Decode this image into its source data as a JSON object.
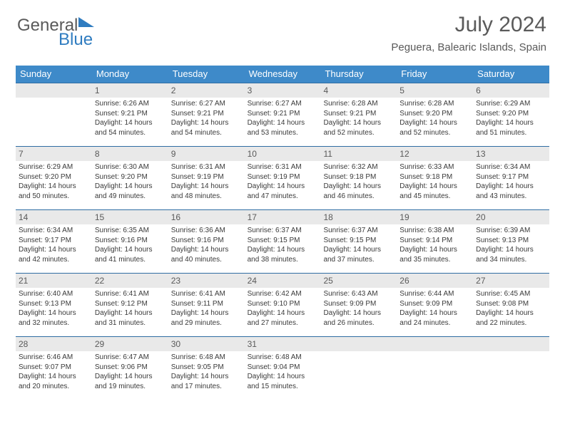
{
  "logo": {
    "part1": "General",
    "part2": "Blue"
  },
  "header": {
    "title": "July 2024",
    "location": "Peguera, Balearic Islands, Spain"
  },
  "colors": {
    "header_bg": "#3e8ac9",
    "header_text": "#ffffff",
    "week_border": "#2f6da3",
    "daynum_bg": "#e9e9e9",
    "text": "#3a3a3a",
    "logo_blue": "#2f7cc0",
    "logo_gray": "#5a5a5a"
  },
  "day_names": [
    "Sunday",
    "Monday",
    "Tuesday",
    "Wednesday",
    "Thursday",
    "Friday",
    "Saturday"
  ],
  "weeks": [
    [
      {
        "num": "",
        "lines": []
      },
      {
        "num": "1",
        "lines": [
          "Sunrise: 6:26 AM",
          "Sunset: 9:21 PM",
          "Daylight: 14 hours",
          "and 54 minutes."
        ]
      },
      {
        "num": "2",
        "lines": [
          "Sunrise: 6:27 AM",
          "Sunset: 9:21 PM",
          "Daylight: 14 hours",
          "and 54 minutes."
        ]
      },
      {
        "num": "3",
        "lines": [
          "Sunrise: 6:27 AM",
          "Sunset: 9:21 PM",
          "Daylight: 14 hours",
          "and 53 minutes."
        ]
      },
      {
        "num": "4",
        "lines": [
          "Sunrise: 6:28 AM",
          "Sunset: 9:21 PM",
          "Daylight: 14 hours",
          "and 52 minutes."
        ]
      },
      {
        "num": "5",
        "lines": [
          "Sunrise: 6:28 AM",
          "Sunset: 9:20 PM",
          "Daylight: 14 hours",
          "and 52 minutes."
        ]
      },
      {
        "num": "6",
        "lines": [
          "Sunrise: 6:29 AM",
          "Sunset: 9:20 PM",
          "Daylight: 14 hours",
          "and 51 minutes."
        ]
      }
    ],
    [
      {
        "num": "7",
        "lines": [
          "Sunrise: 6:29 AM",
          "Sunset: 9:20 PM",
          "Daylight: 14 hours",
          "and 50 minutes."
        ]
      },
      {
        "num": "8",
        "lines": [
          "Sunrise: 6:30 AM",
          "Sunset: 9:20 PM",
          "Daylight: 14 hours",
          "and 49 minutes."
        ]
      },
      {
        "num": "9",
        "lines": [
          "Sunrise: 6:31 AM",
          "Sunset: 9:19 PM",
          "Daylight: 14 hours",
          "and 48 minutes."
        ]
      },
      {
        "num": "10",
        "lines": [
          "Sunrise: 6:31 AM",
          "Sunset: 9:19 PM",
          "Daylight: 14 hours",
          "and 47 minutes."
        ]
      },
      {
        "num": "11",
        "lines": [
          "Sunrise: 6:32 AM",
          "Sunset: 9:18 PM",
          "Daylight: 14 hours",
          "and 46 minutes."
        ]
      },
      {
        "num": "12",
        "lines": [
          "Sunrise: 6:33 AM",
          "Sunset: 9:18 PM",
          "Daylight: 14 hours",
          "and 45 minutes."
        ]
      },
      {
        "num": "13",
        "lines": [
          "Sunrise: 6:34 AM",
          "Sunset: 9:17 PM",
          "Daylight: 14 hours",
          "and 43 minutes."
        ]
      }
    ],
    [
      {
        "num": "14",
        "lines": [
          "Sunrise: 6:34 AM",
          "Sunset: 9:17 PM",
          "Daylight: 14 hours",
          "and 42 minutes."
        ]
      },
      {
        "num": "15",
        "lines": [
          "Sunrise: 6:35 AM",
          "Sunset: 9:16 PM",
          "Daylight: 14 hours",
          "and 41 minutes."
        ]
      },
      {
        "num": "16",
        "lines": [
          "Sunrise: 6:36 AM",
          "Sunset: 9:16 PM",
          "Daylight: 14 hours",
          "and 40 minutes."
        ]
      },
      {
        "num": "17",
        "lines": [
          "Sunrise: 6:37 AM",
          "Sunset: 9:15 PM",
          "Daylight: 14 hours",
          "and 38 minutes."
        ]
      },
      {
        "num": "18",
        "lines": [
          "Sunrise: 6:37 AM",
          "Sunset: 9:15 PM",
          "Daylight: 14 hours",
          "and 37 minutes."
        ]
      },
      {
        "num": "19",
        "lines": [
          "Sunrise: 6:38 AM",
          "Sunset: 9:14 PM",
          "Daylight: 14 hours",
          "and 35 minutes."
        ]
      },
      {
        "num": "20",
        "lines": [
          "Sunrise: 6:39 AM",
          "Sunset: 9:13 PM",
          "Daylight: 14 hours",
          "and 34 minutes."
        ]
      }
    ],
    [
      {
        "num": "21",
        "lines": [
          "Sunrise: 6:40 AM",
          "Sunset: 9:13 PM",
          "Daylight: 14 hours",
          "and 32 minutes."
        ]
      },
      {
        "num": "22",
        "lines": [
          "Sunrise: 6:41 AM",
          "Sunset: 9:12 PM",
          "Daylight: 14 hours",
          "and 31 minutes."
        ]
      },
      {
        "num": "23",
        "lines": [
          "Sunrise: 6:41 AM",
          "Sunset: 9:11 PM",
          "Daylight: 14 hours",
          "and 29 minutes."
        ]
      },
      {
        "num": "24",
        "lines": [
          "Sunrise: 6:42 AM",
          "Sunset: 9:10 PM",
          "Daylight: 14 hours",
          "and 27 minutes."
        ]
      },
      {
        "num": "25",
        "lines": [
          "Sunrise: 6:43 AM",
          "Sunset: 9:09 PM",
          "Daylight: 14 hours",
          "and 26 minutes."
        ]
      },
      {
        "num": "26",
        "lines": [
          "Sunrise: 6:44 AM",
          "Sunset: 9:09 PM",
          "Daylight: 14 hours",
          "and 24 minutes."
        ]
      },
      {
        "num": "27",
        "lines": [
          "Sunrise: 6:45 AM",
          "Sunset: 9:08 PM",
          "Daylight: 14 hours",
          "and 22 minutes."
        ]
      }
    ],
    [
      {
        "num": "28",
        "lines": [
          "Sunrise: 6:46 AM",
          "Sunset: 9:07 PM",
          "Daylight: 14 hours",
          "and 20 minutes."
        ]
      },
      {
        "num": "29",
        "lines": [
          "Sunrise: 6:47 AM",
          "Sunset: 9:06 PM",
          "Daylight: 14 hours",
          "and 19 minutes."
        ]
      },
      {
        "num": "30",
        "lines": [
          "Sunrise: 6:48 AM",
          "Sunset: 9:05 PM",
          "Daylight: 14 hours",
          "and 17 minutes."
        ]
      },
      {
        "num": "31",
        "lines": [
          "Sunrise: 6:48 AM",
          "Sunset: 9:04 PM",
          "Daylight: 14 hours",
          "and 15 minutes."
        ]
      },
      {
        "num": "",
        "lines": []
      },
      {
        "num": "",
        "lines": []
      },
      {
        "num": "",
        "lines": []
      }
    ]
  ]
}
